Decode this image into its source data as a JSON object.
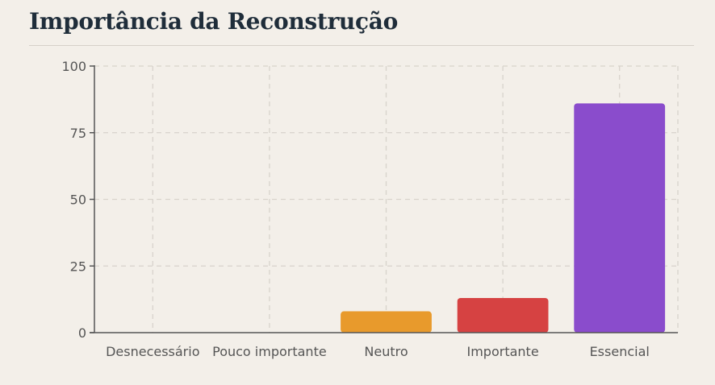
{
  "title": "Importância da Reconstrução",
  "chart_data": {
    "type": "bar",
    "title": "Importância da Reconstrução",
    "categories": [
      "Desnecessário",
      "Pouco importante",
      "Neutro",
      "Importante",
      "Essencial"
    ],
    "values": [
      0,
      0,
      8,
      13,
      86
    ],
    "colors": [
      "#e89a2c",
      "#e89a2c",
      "#e89a2c",
      "#d64242",
      "#8a4ccc"
    ],
    "ylim": [
      0,
      100
    ],
    "yticks": [
      0,
      25,
      50,
      75,
      100
    ],
    "grid": true,
    "xlabel": "",
    "ylabel": ""
  }
}
